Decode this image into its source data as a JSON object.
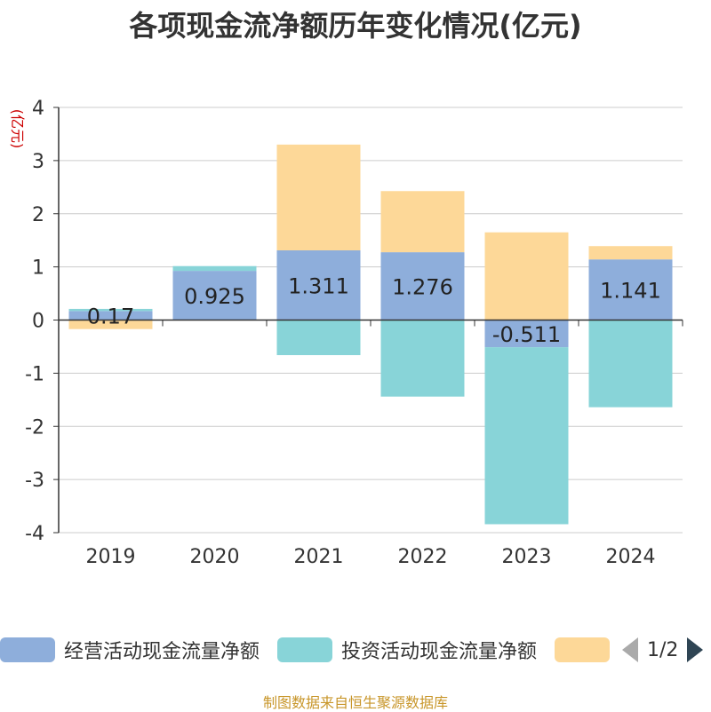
{
  "chart_data": {
    "type": "bar",
    "stacked": true,
    "title": "各项现金流净额历年变化情况(亿元)",
    "ylabel": "(亿元)",
    "categories": [
      "2019",
      "2020",
      "2021",
      "2022",
      "2023",
      "2024"
    ],
    "ylim": [
      -4,
      4
    ],
    "yticks": [
      4,
      3,
      2,
      1,
      0,
      -1,
      -2,
      -3,
      -4
    ],
    "grid": true,
    "series": [
      {
        "name": "经营活动现金流量净额",
        "color": "#8eaedb",
        "values": [
          0.17,
          0.925,
          1.311,
          1.276,
          -0.511,
          1.141
        ],
        "labels": [
          "0.17",
          "0.925",
          "1.311",
          "1.276",
          "-0.511",
          "1.141"
        ]
      },
      {
        "name": "投资活动现金流量净额",
        "color": "#88d4d8",
        "values": [
          0.04,
          0.09,
          -0.66,
          -1.44,
          -3.33,
          -1.64
        ]
      },
      {
        "name": "",
        "color": "#fdd898",
        "values": [
          -0.17,
          0.0,
          1.99,
          1.15,
          1.65,
          0.25
        ]
      }
    ],
    "legend_position": "bottom"
  },
  "legend": {
    "page_indicator": "1/2",
    "prev_icon": "chevron-left-icon",
    "next_icon": "chevron-right-icon"
  },
  "source_note": "制图数据来自恒生聚源数据库"
}
